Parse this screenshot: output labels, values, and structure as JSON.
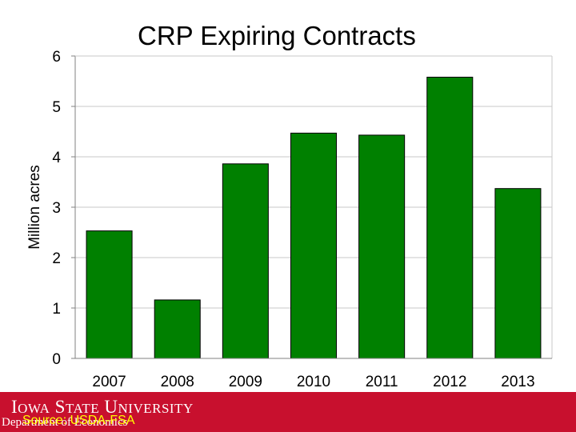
{
  "chart_data": {
    "type": "bar",
    "title": "CRP Expiring Contracts",
    "ylabel": "Million acres",
    "xlabel": "",
    "categories": [
      "2007",
      "2008",
      "2009",
      "2010",
      "2011",
      "2012",
      "2013"
    ],
    "values": [
      2.53,
      1.16,
      3.86,
      4.47,
      4.43,
      5.58,
      3.37
    ],
    "ylim": [
      0,
      6
    ],
    "yticks": [
      0,
      1,
      2,
      3,
      4,
      5,
      6
    ],
    "grid": true,
    "bar_color": "#008000",
    "legend": "none"
  },
  "footer": {
    "logo_text": "Iowa State University",
    "department": "Department of Economics",
    "source": "Source: USDA-FSA",
    "background_color": "#c8102e"
  }
}
